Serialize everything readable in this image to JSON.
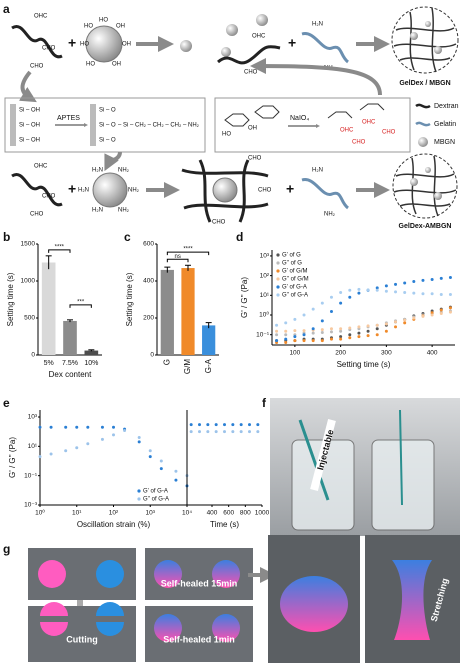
{
  "figure": {
    "panel_labels": [
      "a",
      "b",
      "c",
      "d",
      "e",
      "f",
      "g"
    ],
    "panel_a": {
      "products": [
        "GelDex / MBGN",
        "GelDex-AMBGN"
      ],
      "reagents": [
        "APTES",
        "NaIO₄"
      ],
      "legend": [
        "Dextran",
        "Gelatin",
        "MBGN"
      ],
      "groups": {
        "ohc": "OHC",
        "cho": "CHO",
        "ho": "HO",
        "oh": "OH",
        "h2n": "H₂N",
        "nh2": "NH₂",
        "sioh": "Si – OH",
        "sio": "Si – O"
      },
      "silane": "– Si – CH₂ – CH₂ – CH₂ – NH₂"
    },
    "panel_f": {
      "label": "Injectable"
    },
    "panel_g": {
      "labels": [
        "Cutting",
        "Self-healed 1min",
        "Self-healed 15min",
        "Stretching"
      ]
    }
  },
  "chart_data": [
    {
      "type": "bar",
      "ylabel": "Setting time (s)",
      "xlabel": "Dex content",
      "categories": [
        "5%",
        "7.5%",
        "10%"
      ],
      "values": [
        1250,
        460,
        60
      ],
      "errors": [
        90,
        15,
        10
      ],
      "colors": [
        "#d9d9d9",
        "#8c8c8c",
        "#4d4d4d"
      ],
      "ylim": [
        0,
        1500
      ],
      "yticks": [
        0,
        500,
        1000,
        1500
      ],
      "significance": [
        "****",
        "***"
      ]
    },
    {
      "type": "bar",
      "ylabel": "Setting time (s)",
      "categories": [
        "G",
        "G/M",
        "G-A"
      ],
      "values": [
        460,
        470,
        160
      ],
      "errors": [
        15,
        15,
        15
      ],
      "colors": [
        "#8c8c8c",
        "#f08a2a",
        "#3a8fdc"
      ],
      "ylim": [
        0,
        600
      ],
      "yticks": [
        0,
        200,
        400,
        600
      ],
      "significance": [
        "ns",
        "****"
      ]
    },
    {
      "type": "scatter",
      "ylabel": "G' / G'' (Pa)",
      "xlabel": "Setting time (s)",
      "ylog": true,
      "legend": "upper left",
      "x": [
        60,
        80,
        100,
        120,
        140,
        160,
        180,
        200,
        220,
        240,
        260,
        280,
        300,
        320,
        340,
        360,
        380,
        400,
        420,
        440
      ],
      "xlim": [
        50,
        450
      ],
      "xticks": [
        100,
        200,
        300,
        400
      ],
      "ylim": [
        0.03,
        2000
      ],
      "yticks": [
        {
          "value": 0.1,
          "label": "10⁻¹"
        },
        {
          "value": 1,
          "label": "10⁰"
        },
        {
          "value": 10,
          "label": "10¹"
        },
        {
          "value": 100,
          "label": "10²"
        },
        {
          "value": 1000,
          "label": "10³"
        }
      ],
      "series": [
        {
          "name": "G' of G",
          "color": "#555555",
          "values": [
            0.05,
            0.05,
            0.05,
            0.06,
            0.06,
            0.06,
            0.07,
            0.08,
            0.1,
            0.12,
            0.15,
            0.2,
            0.3,
            0.45,
            0.6,
            0.9,
            1.2,
            1.6,
            2,
            2.5
          ]
        },
        {
          "name": "G'' of G",
          "color": "#bbbbbb",
          "values": [
            0.1,
            0.1,
            0.1,
            0.12,
            0.12,
            0.13,
            0.14,
            0.15,
            0.18,
            0.2,
            0.25,
            0.3,
            0.4,
            0.5,
            0.6,
            0.8,
            1,
            1.2,
            1.4,
            1.6
          ]
        },
        {
          "name": "G' of G/M",
          "color": "#f08a2a",
          "values": [
            0.04,
            0.04,
            0.05,
            0.05,
            0.05,
            0.05,
            0.06,
            0.06,
            0.07,
            0.08,
            0.09,
            0.1,
            0.15,
            0.25,
            0.4,
            0.6,
            0.9,
            1.3,
            1.8,
            2.3
          ]
        },
        {
          "name": "G'' of G/M",
          "color": "#f7c9a0",
          "values": [
            0.15,
            0.15,
            0.16,
            0.16,
            0.17,
            0.18,
            0.2,
            0.2,
            0.22,
            0.25,
            0.28,
            0.3,
            0.35,
            0.45,
            0.55,
            0.7,
            0.85,
            1,
            1.2,
            1.4
          ]
        },
        {
          "name": "G' of G-A",
          "color": "#2a7fd4",
          "values": [
            0.05,
            0.06,
            0.08,
            0.1,
            0.2,
            0.5,
            1.5,
            4,
            8,
            13,
            18,
            24,
            30,
            36,
            42,
            50,
            57,
            64,
            72,
            80
          ]
        },
        {
          "name": "G'' of G-A",
          "color": "#a8cdf0",
          "values": [
            0.3,
            0.4,
            0.6,
            1,
            2,
            4,
            8,
            14,
            18,
            20,
            19,
            18,
            16,
            15,
            14,
            13,
            12,
            12,
            11,
            11
          ]
        }
      ]
    },
    {
      "type": "scatter",
      "ylabel": "G' / G'' (Pa)",
      "xlabel": "Oscillation strain (%)",
      "time_xlabel": "Time (s)",
      "ylog": true,
      "xlog": true,
      "legend": "lower right",
      "x": [
        1,
        2,
        5,
        10,
        20,
        50,
        100,
        200,
        500,
        1000,
        2000,
        5000,
        10000
      ],
      "xlim": [
        1,
        10000
      ],
      "xticks": [
        {
          "value": 1,
          "label": "10⁰"
        },
        {
          "value": 10,
          "label": "10¹"
        },
        {
          "value": 100,
          "label": "10²"
        },
        {
          "value": 1000,
          "label": "10³"
        },
        {
          "value": 10000,
          "label": "10⁴"
        }
      ],
      "time_x": [
        150,
        250,
        350,
        450,
        550,
        650,
        750,
        850,
        950
      ],
      "time_xlim": [
        100,
        1000
      ],
      "time_xticks": [
        400,
        600,
        800,
        1000
      ],
      "ylim": [
        0.001,
        3000
      ],
      "yticks": [
        {
          "value": 0.001,
          "label": "10⁻³"
        },
        {
          "value": 0.1,
          "label": "10⁻¹"
        },
        {
          "value": 10,
          "label": "10¹"
        },
        {
          "value": 1000,
          "label": "10³"
        }
      ],
      "series": [
        {
          "name": "G' of G-A",
          "color": "#2a7fd4",
          "values": [
            200,
            200,
            200,
            200,
            200,
            200,
            200,
            150,
            20,
            2,
            0.3,
            0.05,
            0.02
          ],
          "time_values": [
            300,
            300,
            300,
            300,
            300,
            300,
            300,
            300,
            300
          ]
        },
        {
          "name": "G'' of G-A",
          "color": "#9cc3ea",
          "values": [
            2,
            3,
            5,
            8,
            15,
            30,
            60,
            120,
            40,
            5,
            1,
            0.2,
            0.1
          ],
          "time_values": [
            100,
            100,
            100,
            100,
            100,
            100,
            100,
            100,
            100
          ]
        }
      ]
    }
  ]
}
